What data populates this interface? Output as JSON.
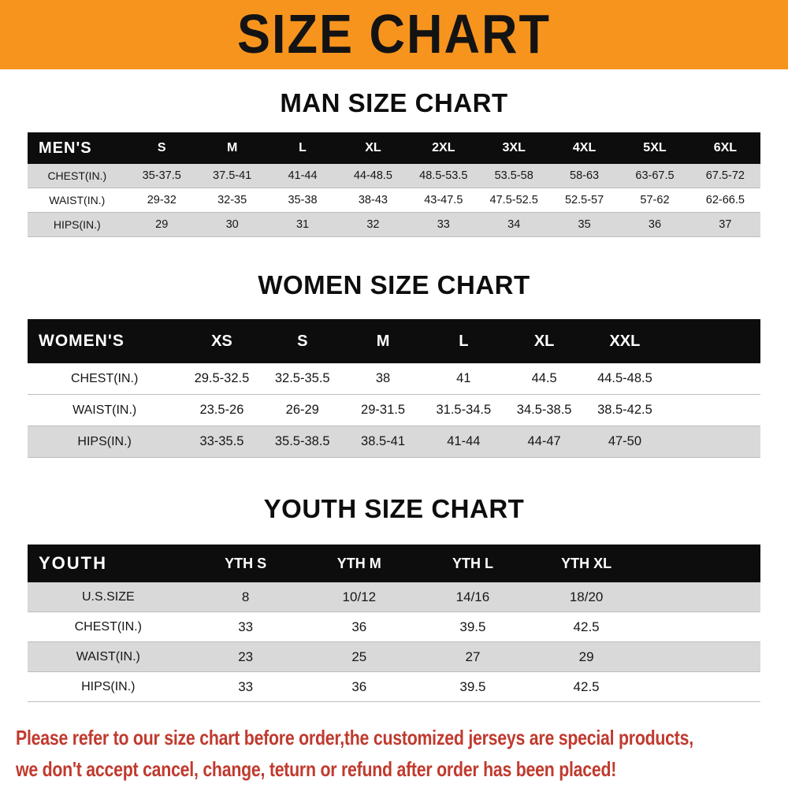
{
  "banner": {
    "title": "SIZE CHART",
    "bg_color": "#f7941e",
    "text_color": "#131313"
  },
  "chart_data": [
    {
      "type": "table",
      "title": "MAN SIZE CHART",
      "header_label": "MEN'S",
      "columns": [
        "S",
        "M",
        "L",
        "XL",
        "2XL",
        "3XL",
        "4XL",
        "5XL",
        "6XL"
      ],
      "rows": [
        {
          "label": "CHEST(IN.)",
          "values": [
            "35-37.5",
            "37.5-41",
            "41-44",
            "44-48.5",
            "48.5-53.5",
            "53.5-58",
            "58-63",
            "63-67.5",
            "67.5-72"
          ],
          "shaded": true
        },
        {
          "label": "WAIST(IN.)",
          "values": [
            "29-32",
            "32-35",
            "35-38",
            "38-43",
            "43-47.5",
            "47.5-52.5",
            "52.5-57",
            "57-62",
            "62-66.5"
          ],
          "shaded": false
        },
        {
          "label": "HIPS(IN.)",
          "values": [
            "29",
            "30",
            "31",
            "32",
            "33",
            "34",
            "35",
            "36",
            "37"
          ],
          "shaded": true
        }
      ]
    },
    {
      "type": "table",
      "title": "WOMEN SIZE CHART",
      "header_label": "WOMEN'S",
      "columns": [
        "XS",
        "S",
        "M",
        "L",
        "XL",
        "XXL"
      ],
      "rows": [
        {
          "label": "CHEST(IN.)",
          "values": [
            "29.5-32.5",
            "32.5-35.5",
            "38",
            "41",
            "44.5",
            "44.5-48.5"
          ],
          "shaded": false
        },
        {
          "label": "WAIST(IN.)",
          "values": [
            "23.5-26",
            "26-29",
            "29-31.5",
            "31.5-34.5",
            "34.5-38.5",
            "38.5-42.5"
          ],
          "shaded": false
        },
        {
          "label": "HIPS(IN.)",
          "values": [
            "33-35.5",
            "35.5-38.5",
            "38.5-41",
            "41-44",
            "44-47",
            "47-50"
          ],
          "shaded": true
        }
      ]
    },
    {
      "type": "table",
      "title": "YOUTH SIZE CHART",
      "header_label": "YOUTH",
      "columns": [
        "YTH S",
        "YTH M",
        "YTH L",
        "YTH XL"
      ],
      "rows": [
        {
          "label": "U.S.SIZE",
          "values": [
            "8",
            "10/12",
            "14/16",
            "18/20"
          ],
          "shaded": true
        },
        {
          "label": "CHEST(IN.)",
          "values": [
            "33",
            "36",
            "39.5",
            "42.5"
          ],
          "shaded": false
        },
        {
          "label": "WAIST(IN.)",
          "values": [
            "23",
            "25",
            "27",
            "29"
          ],
          "shaded": true
        },
        {
          "label": "HIPS(IN.)",
          "values": [
            "33",
            "36",
            "39.5",
            "42.5"
          ],
          "shaded": false
        }
      ]
    }
  ],
  "footer": {
    "line1": "Please refer to our size chart before order,the customized jerseys are special products,",
    "line2": "we don't accept cancel, change, teturn or refund after order has been placed!",
    "text_color": "#c03a2e"
  },
  "colors": {
    "table_header_bg": "#0d0d0d",
    "table_header_text": "#ffffff",
    "row_shade": "#d9d9d9"
  }
}
